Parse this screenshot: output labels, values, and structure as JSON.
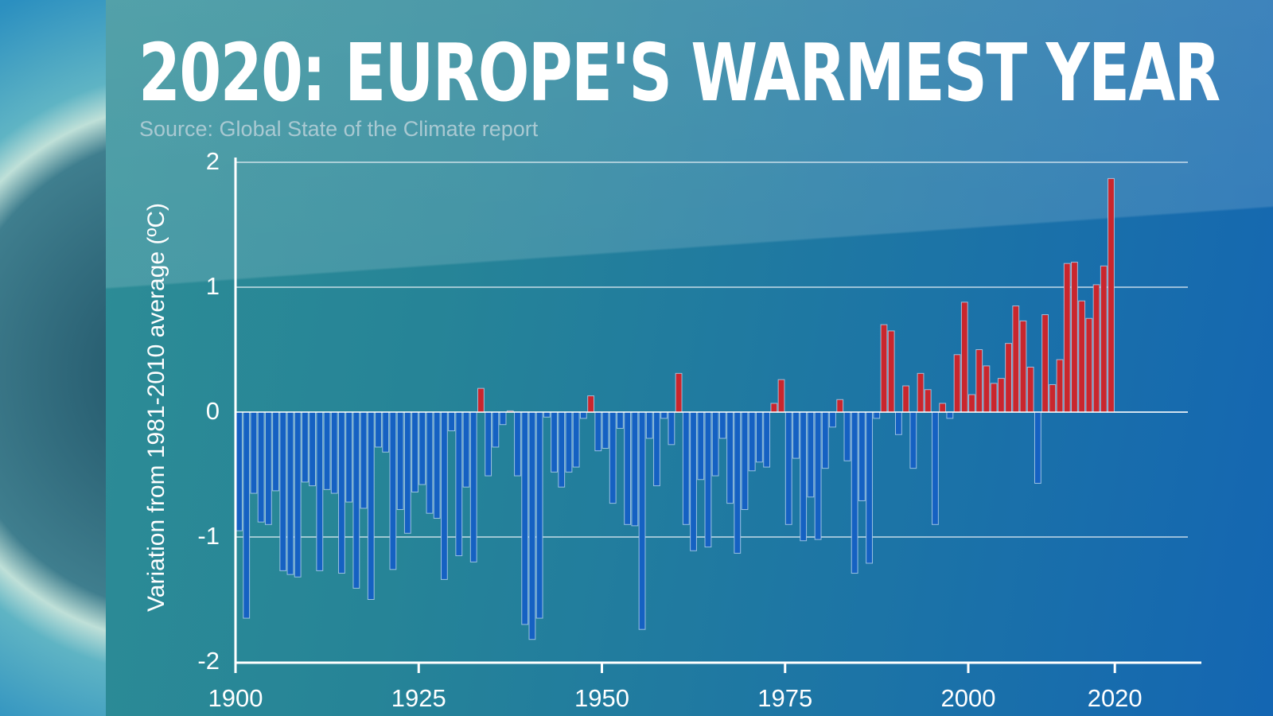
{
  "header": {
    "title": "2020: EUROPE'S WARMEST YEAR",
    "subtitle": "Source: Global State of the Climate report"
  },
  "colors": {
    "positive": "#c9262d",
    "negative": "#1561c2",
    "bar_outline": "#b9d6ef"
  },
  "chart_data": {
    "type": "bar",
    "title": "2020: EUROPE'S WARMEST YEAR",
    "ylabel": "Variation from 1981-2010 average (ºC)",
    "xlabel": "",
    "xlim": [
      1900,
      2030
    ],
    "ylim": [
      -2,
      2
    ],
    "yticks": [
      "2",
      "1",
      "0",
      "-1",
      "-2"
    ],
    "xticks": [
      "1900",
      "1925",
      "1950",
      "1975",
      "2000",
      "2020"
    ],
    "grid": true,
    "first_year": 1901,
    "last_year": 2020,
    "values": [
      -0.95,
      -1.65,
      -0.65,
      -0.88,
      -0.9,
      -0.63,
      -1.27,
      -1.3,
      -1.32,
      -0.56,
      -0.59,
      -1.27,
      -0.62,
      -0.65,
      -1.29,
      -0.72,
      -1.41,
      -0.77,
      -1.5,
      -0.28,
      -0.32,
      -1.26,
      -0.78,
      -0.97,
      -0.64,
      -0.58,
      -0.81,
      -0.85,
      -1.34,
      -0.15,
      -1.15,
      -0.6,
      -1.2,
      0.19,
      -0.51,
      -0.28,
      -0.1,
      0.01,
      -0.51,
      -1.7,
      -1.82,
      -1.65,
      -0.04,
      -0.48,
      -0.6,
      -0.48,
      -0.44,
      -0.05,
      0.13,
      -0.31,
      -0.29,
      -0.73,
      -0.13,
      -0.9,
      -0.91,
      -1.74,
      -0.21,
      -0.59,
      -0.05,
      -0.26,
      0.31,
      -0.9,
      -1.11,
      -0.54,
      -1.08,
      -0.51,
      -0.21,
      -0.73,
      -1.13,
      -0.78,
      -0.47,
      -0.4,
      -0.44,
      0.07,
      0.26,
      -0.9,
      -0.37,
      -1.03,
      -0.68,
      -1.02,
      -0.45,
      -0.12,
      0.1,
      -0.39,
      -1.29,
      -0.71,
      -1.21,
      -0.05,
      0.7,
      0.65,
      -0.18,
      0.21,
      -0.45,
      0.31,
      0.18,
      -0.9,
      0.07,
      -0.05,
      0.46,
      0.88,
      0.14,
      0.5,
      0.37,
      0.23,
      0.27,
      0.55,
      0.85,
      0.73,
      0.36,
      -0.57,
      0.78,
      0.22,
      0.42,
      1.19,
      1.2,
      0.89,
      0.75,
      1.02,
      1.17,
      1.87
    ]
  }
}
